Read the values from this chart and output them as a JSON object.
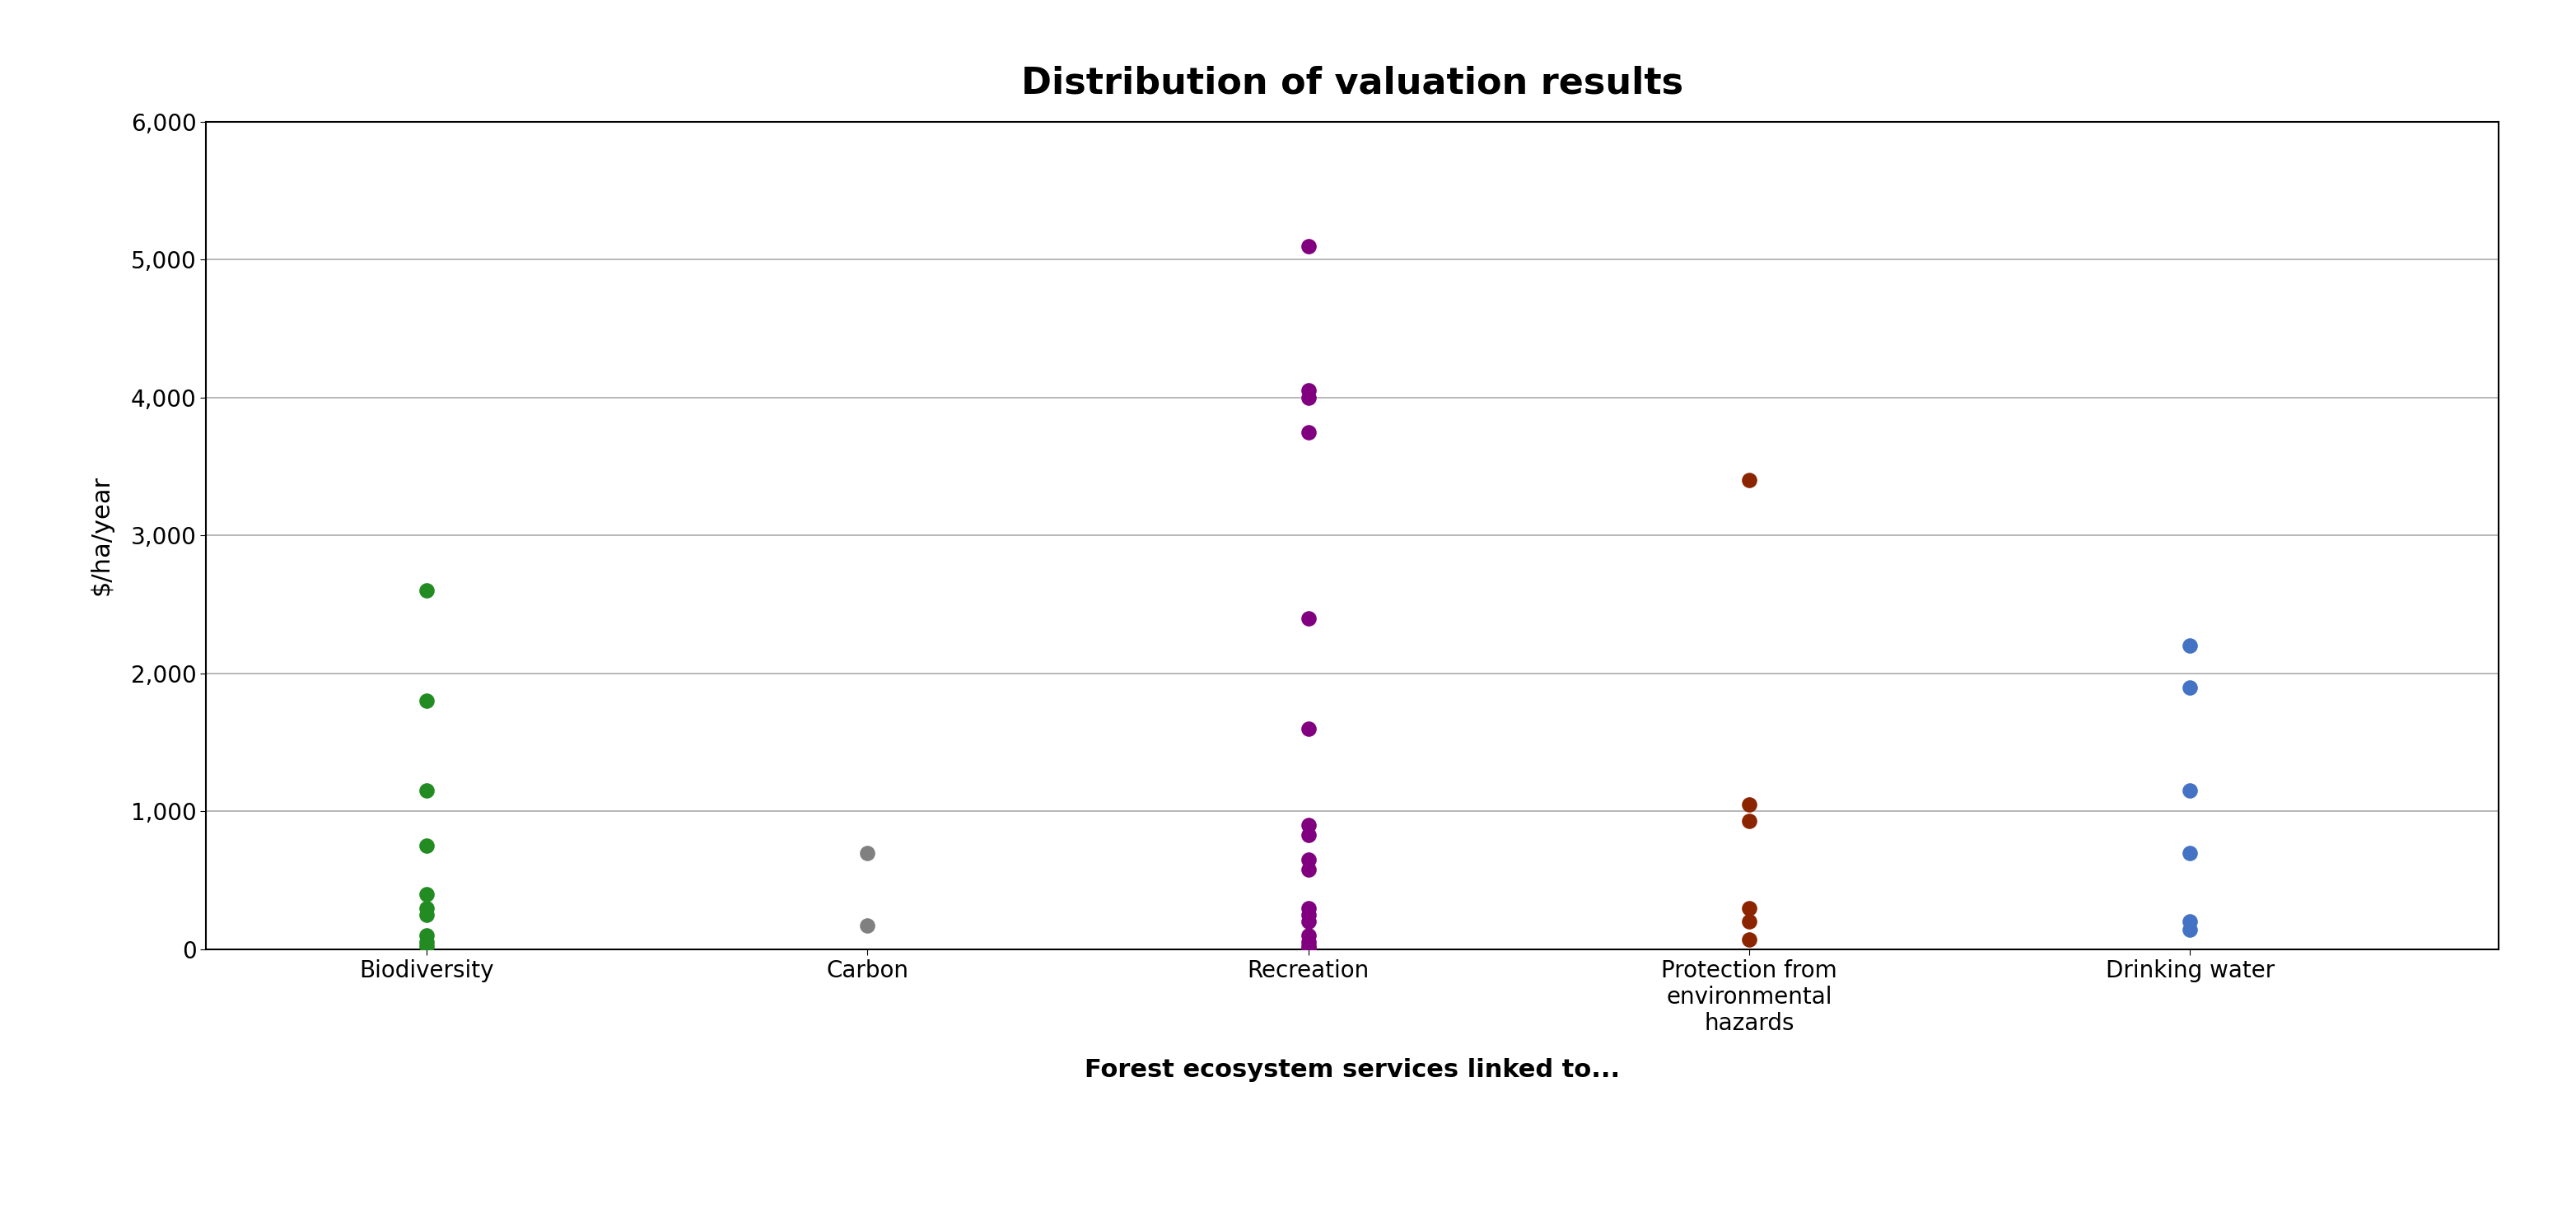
{
  "title": "Distribution of valuation results",
  "xlabel": "Forest ecosystem services linked to...",
  "ylabel": "$/ha/year",
  "ylim": [
    0,
    6000
  ],
  "yticks": [
    0,
    1000,
    2000,
    3000,
    4000,
    5000,
    6000
  ],
  "ytick_labels": [
    "0",
    "1,000",
    "2,000",
    "3,000",
    "4,000",
    "5,000",
    "6,000"
  ],
  "categories": [
    "Biodiversity",
    "Carbon",
    "Recreation",
    "Protection from\nenvironmental\nhazards",
    "Drinking water"
  ],
  "x_positions": [
    1,
    2,
    3,
    4,
    5
  ],
  "series": [
    {
      "label": "Biodiversity",
      "x": 1,
      "color": "#228B22",
      "values": [
        2600,
        1800,
        1150,
        750,
        400,
        300,
        250,
        100,
        50,
        20
      ]
    },
    {
      "label": "Carbon",
      "x": 2,
      "color": "#808080",
      "values": [
        700,
        175
      ]
    },
    {
      "label": "Recreation",
      "x": 3,
      "color": "#800080",
      "values": [
        5100,
        4050,
        4000,
        3750,
        2400,
        1600,
        900,
        830,
        650,
        580,
        300,
        250,
        200,
        100,
        50,
        20,
        5
      ]
    },
    {
      "label": "Protection from environmental hazards",
      "x": 4,
      "color": "#8B2500",
      "values": [
        3400,
        1050,
        930,
        300,
        200,
        70
      ]
    },
    {
      "label": "Drinking water",
      "x": 5,
      "color": "#4472C4",
      "values": [
        2200,
        1900,
        1150,
        700,
        200,
        140
      ]
    }
  ],
  "background_color": "#FFFFFF",
  "grid_color": "#AAAAAA",
  "border_color": "#000000",
  "title_fontsize": 32,
  "axis_label_fontsize": 22,
  "tick_fontsize": 20,
  "marker_size": 180,
  "figure_border_color": "#000000"
}
